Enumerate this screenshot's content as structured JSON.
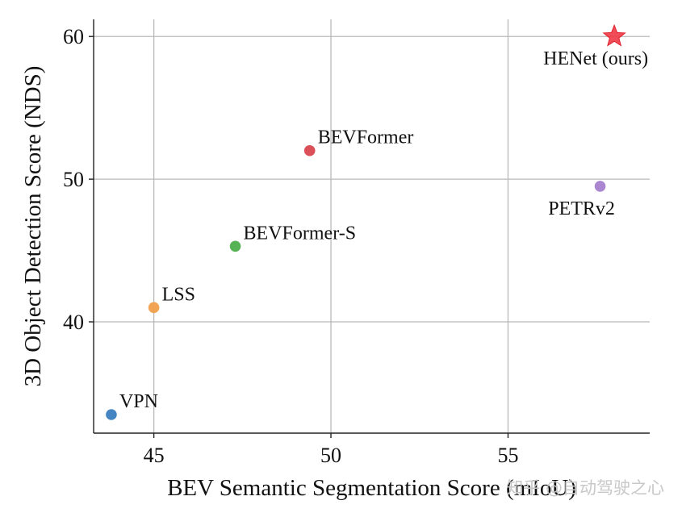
{
  "chart_data": {
    "type": "scatter",
    "title": "",
    "xlabel": "BEV Semantic Segmentation Score (mIoU)",
    "ylabel": "3D Object Detection Score (NDS)",
    "xlim": [
      43.3,
      59.0
    ],
    "ylim": [
      32.2,
      61.2
    ],
    "xticks": [
      45,
      50,
      55
    ],
    "yticks": [
      40,
      50,
      60
    ],
    "grid": true,
    "points": [
      {
        "label": "VPN",
        "x": 43.8,
        "y": 33.5,
        "color": "#3a7ebf",
        "marker": "circle",
        "label_pos": "upper-right"
      },
      {
        "label": "LSS",
        "x": 45.0,
        "y": 41.0,
        "color": "#f0a04b",
        "marker": "circle",
        "label_pos": "upper-right"
      },
      {
        "label": "BEVFormer-S",
        "x": 47.3,
        "y": 45.3,
        "color": "#4cae4c",
        "marker": "circle",
        "label_pos": "upper-right"
      },
      {
        "label": "BEVFormer",
        "x": 49.4,
        "y": 52.0,
        "color": "#d9474f",
        "marker": "circle",
        "label_pos": "upper-right"
      },
      {
        "label": "PETRv2",
        "x": 57.6,
        "y": 49.5,
        "color": "#a67fcf",
        "marker": "circle",
        "label_pos": "below"
      },
      {
        "label": "HENet (ours)",
        "x": 58.0,
        "y": 60.0,
        "color": "#f03a47",
        "marker": "star",
        "label_pos": "below"
      }
    ]
  },
  "watermark": {
    "text": "知乎 @自动驾驶之心"
  }
}
